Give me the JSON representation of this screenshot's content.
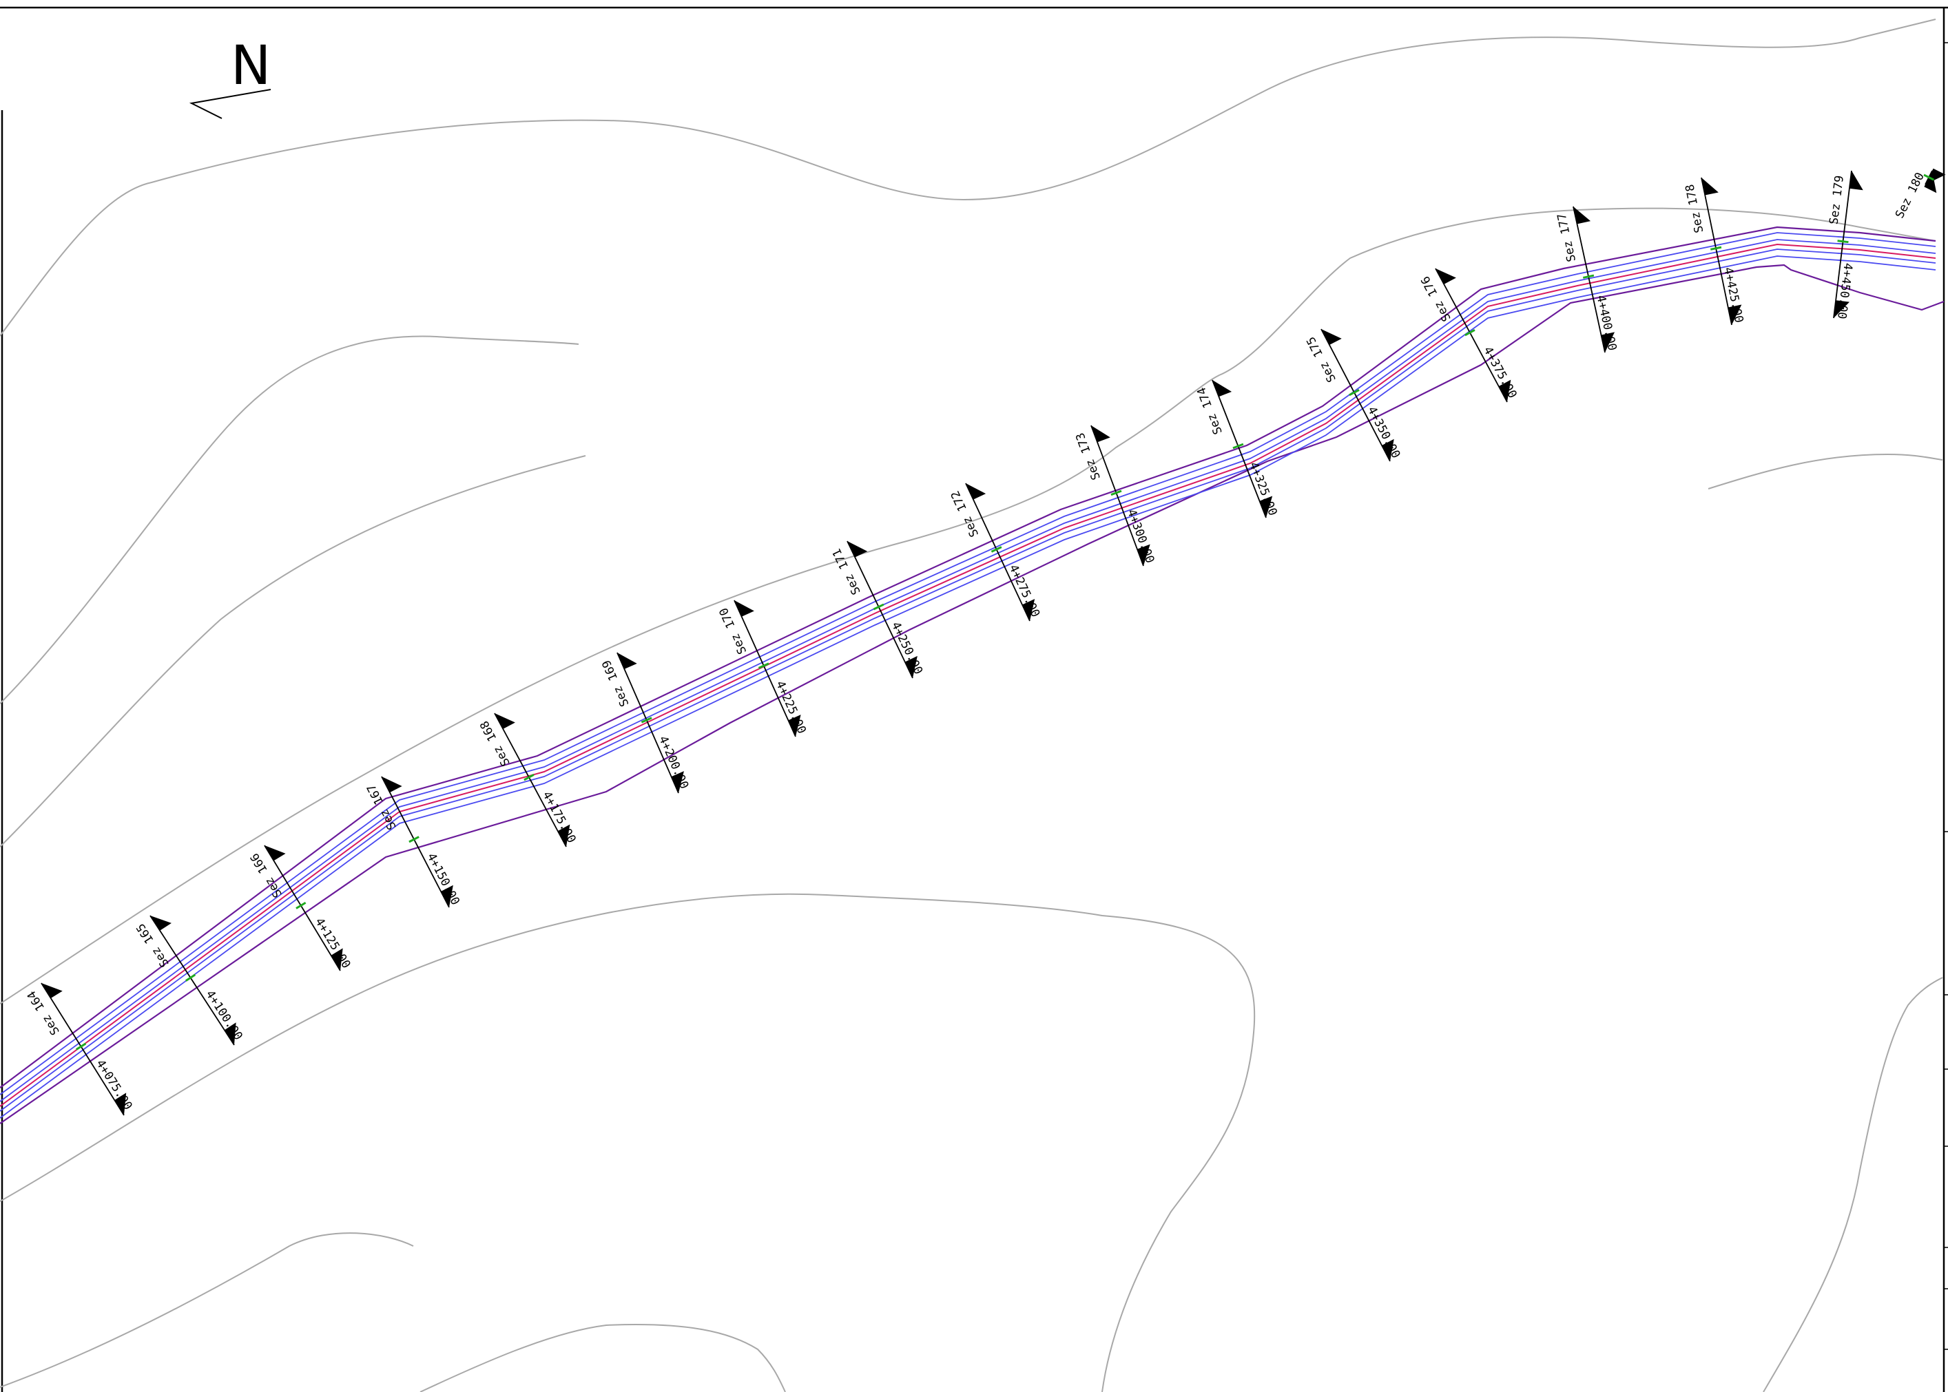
{
  "north": {
    "label": "N"
  },
  "colors": {
    "frame": "#000000",
    "contour": "#a8a8a8",
    "edge": "#6a1b9a",
    "lane": "#4a4af0",
    "centerline": "#d81b60",
    "tick": "#1faa1f"
  },
  "sections": [
    {
      "name": "Sez 164",
      "chainage": "4+075.00"
    },
    {
      "name": "Sez 165",
      "chainage": "4+100.00"
    },
    {
      "name": "Sez 166",
      "chainage": "4+125.00"
    },
    {
      "name": "Sez 167",
      "chainage": "4+150.00"
    },
    {
      "name": "Sez 168",
      "chainage": "4+175.00"
    },
    {
      "name": "Sez 169",
      "chainage": "4+200.00"
    },
    {
      "name": "Sez 170",
      "chainage": "4+225.00"
    },
    {
      "name": "Sez 171",
      "chainage": "4+250.00"
    },
    {
      "name": "Sez 172",
      "chainage": "4+275.00"
    },
    {
      "name": "Sez 173",
      "chainage": "4+300.00"
    },
    {
      "name": "Sez 174",
      "chainage": "4+325.00"
    },
    {
      "name": "Sez 175",
      "chainage": "4+350.00"
    },
    {
      "name": "Sez 176",
      "chainage": "4+375.00"
    },
    {
      "name": "Sez 177",
      "chainage": "4+400.00"
    },
    {
      "name": "Sez 178",
      "chainage": "4+425.00"
    },
    {
      "name": "Sez 179",
      "chainage": "4+450.00"
    },
    {
      "name": "Sez 180",
      "chainage": ""
    }
  ]
}
